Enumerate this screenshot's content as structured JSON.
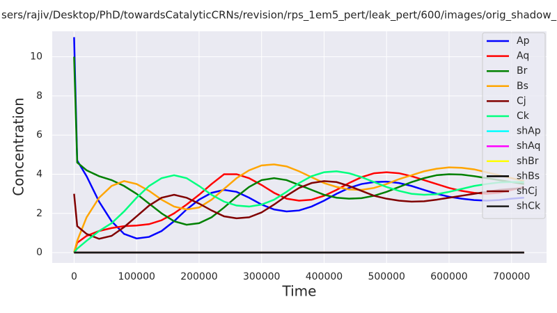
{
  "chart_data": {
    "type": "line",
    "title": "sers/rajiv/Desktop/PhD/towardsCatalyticCRNs/revision/rps_1em5_pert/leak_pert/600/images/orig_shadow_c",
    "xlabel": "Time",
    "ylabel": "Concentration",
    "x": [
      0,
      5000,
      20000,
      40000,
      60000,
      80000,
      100000,
      120000,
      140000,
      160000,
      180000,
      200000,
      220000,
      240000,
      260000,
      280000,
      300000,
      320000,
      340000,
      360000,
      380000,
      400000,
      420000,
      440000,
      460000,
      480000,
      500000,
      520000,
      540000,
      560000,
      580000,
      600000,
      620000,
      640000,
      660000,
      680000,
      700000,
      720000
    ],
    "series": [
      {
        "name": "Ap",
        "color": "#0000ff",
        "values": [
          11,
          4.7,
          3.9,
          2.6,
          1.6,
          0.95,
          0.72,
          0.8,
          1.1,
          1.6,
          2.2,
          2.7,
          3.05,
          3.2,
          3.1,
          2.8,
          2.45,
          2.2,
          2.1,
          2.15,
          2.35,
          2.65,
          3.0,
          3.3,
          3.5,
          3.6,
          3.62,
          3.55,
          3.4,
          3.2,
          3.0,
          2.85,
          2.75,
          2.68,
          2.65,
          2.68,
          2.75,
          2.8
        ]
      },
      {
        "name": "Aq",
        "color": "#ff0000",
        "values": [
          0,
          0.5,
          0.85,
          1.1,
          1.25,
          1.35,
          1.38,
          1.45,
          1.65,
          2.0,
          2.45,
          2.95,
          3.5,
          4.0,
          4.0,
          3.8,
          3.45,
          3.05,
          2.75,
          2.65,
          2.7,
          2.9,
          3.2,
          3.55,
          3.85,
          4.05,
          4.1,
          4.05,
          3.9,
          3.7,
          3.5,
          3.3,
          3.15,
          3.05,
          3.0,
          3.05,
          3.2,
          3.35
        ]
      },
      {
        "name": "Br",
        "color": "#008000",
        "values": [
          10,
          4.6,
          4.2,
          3.9,
          3.7,
          3.4,
          3.0,
          2.5,
          2.0,
          1.6,
          1.42,
          1.5,
          1.8,
          2.3,
          2.85,
          3.35,
          3.7,
          3.8,
          3.7,
          3.45,
          3.2,
          2.95,
          2.8,
          2.75,
          2.78,
          2.9,
          3.1,
          3.35,
          3.6,
          3.8,
          3.95,
          4.0,
          3.98,
          3.9,
          3.8,
          3.7,
          3.6,
          3.5
        ]
      },
      {
        "name": "Bs",
        "color": "#ffa500",
        "values": [
          0,
          0.6,
          1.8,
          2.8,
          3.4,
          3.65,
          3.5,
          3.15,
          2.7,
          2.35,
          2.2,
          2.3,
          2.7,
          3.25,
          3.8,
          4.2,
          4.45,
          4.5,
          4.4,
          4.15,
          3.85,
          3.55,
          3.35,
          3.22,
          3.2,
          3.3,
          3.5,
          3.75,
          3.95,
          4.15,
          4.28,
          4.35,
          4.33,
          4.25,
          4.1,
          3.95,
          3.8,
          3.65
        ]
      },
      {
        "name": "Cj",
        "color": "#800000",
        "values": [
          3,
          1.35,
          0.95,
          0.7,
          0.85,
          1.3,
          1.85,
          2.4,
          2.8,
          2.95,
          2.8,
          2.5,
          2.15,
          1.85,
          1.75,
          1.8,
          2.05,
          2.45,
          2.9,
          3.3,
          3.55,
          3.65,
          3.6,
          3.4,
          3.15,
          2.9,
          2.75,
          2.65,
          2.6,
          2.62,
          2.7,
          2.8,
          2.9,
          3.0,
          3.1,
          3.2,
          3.25,
          3.3
        ]
      },
      {
        "name": "Ck",
        "color": "#00ff7f",
        "values": [
          0,
          0.2,
          0.6,
          1.1,
          1.5,
          2.1,
          2.8,
          3.4,
          3.8,
          3.95,
          3.8,
          3.4,
          2.95,
          2.6,
          2.4,
          2.35,
          2.45,
          2.7,
          3.1,
          3.55,
          3.9,
          4.1,
          4.15,
          4.05,
          3.85,
          3.6,
          3.35,
          3.15,
          3.0,
          2.95,
          2.98,
          3.1,
          3.25,
          3.4,
          3.5,
          3.58,
          3.6,
          3.6
        ]
      },
      {
        "name": "shAp",
        "color": "#00ffff",
        "values": [
          0,
          0,
          0,
          0,
          0,
          0,
          0,
          0,
          0,
          0,
          0,
          0,
          0,
          0,
          0,
          0,
          0,
          0,
          0,
          0,
          0,
          0,
          0,
          0,
          0,
          0,
          0,
          0,
          0,
          0,
          0,
          0,
          0,
          0,
          0,
          0,
          0,
          0
        ]
      },
      {
        "name": "shAq",
        "color": "#ff00ff",
        "values": [
          0,
          0,
          0,
          0,
          0,
          0,
          0,
          0,
          0,
          0,
          0,
          0,
          0,
          0,
          0,
          0,
          0,
          0,
          0,
          0,
          0,
          0,
          0,
          0,
          0,
          0,
          0,
          0,
          0,
          0,
          0,
          0,
          0,
          0,
          0,
          0,
          0,
          0
        ]
      },
      {
        "name": "shBr",
        "color": "#ffff00",
        "values": [
          0,
          0,
          0,
          0,
          0,
          0,
          0,
          0,
          0,
          0,
          0,
          0,
          0,
          0,
          0,
          0,
          0,
          0,
          0,
          0,
          0,
          0,
          0,
          0,
          0,
          0,
          0,
          0,
          0,
          0,
          0,
          0,
          0,
          0,
          0,
          0,
          0,
          0
        ]
      },
      {
        "name": "shBs",
        "color": "#000000",
        "values": [
          0,
          0,
          0,
          0,
          0,
          0,
          0,
          0,
          0,
          0,
          0,
          0,
          0,
          0,
          0,
          0,
          0,
          0,
          0,
          0,
          0,
          0,
          0,
          0,
          0,
          0,
          0,
          0,
          0,
          0,
          0,
          0,
          0,
          0,
          0,
          0,
          0,
          0
        ]
      },
      {
        "name": "shCj",
        "color": "#800000",
        "values": [
          0,
          0,
          0,
          0,
          0,
          0,
          0,
          0,
          0,
          0,
          0,
          0,
          0,
          0,
          0,
          0,
          0,
          0,
          0,
          0,
          0,
          0,
          0,
          0,
          0,
          0,
          0,
          0,
          0,
          0,
          0,
          0,
          0,
          0,
          0,
          0,
          0,
          0
        ]
      },
      {
        "name": "shCk",
        "color": "#1a1a1a",
        "values": [
          0,
          0,
          0,
          0,
          0,
          0,
          0,
          0,
          0,
          0,
          0,
          0,
          0,
          0,
          0,
          0,
          0,
          0,
          0,
          0,
          0,
          0,
          0,
          0,
          0,
          0,
          0,
          0,
          0,
          0,
          0,
          0,
          0,
          0,
          0,
          0,
          0,
          0
        ]
      }
    ],
    "xlim": [
      -35000,
      756000
    ],
    "ylim": [
      -0.53,
      11.3
    ],
    "xticks": [
      0,
      100000,
      200000,
      300000,
      400000,
      500000,
      600000,
      700000
    ],
    "yticks": [
      0,
      2,
      4,
      6,
      8,
      10
    ],
    "grid": true,
    "legend": "upper right"
  }
}
